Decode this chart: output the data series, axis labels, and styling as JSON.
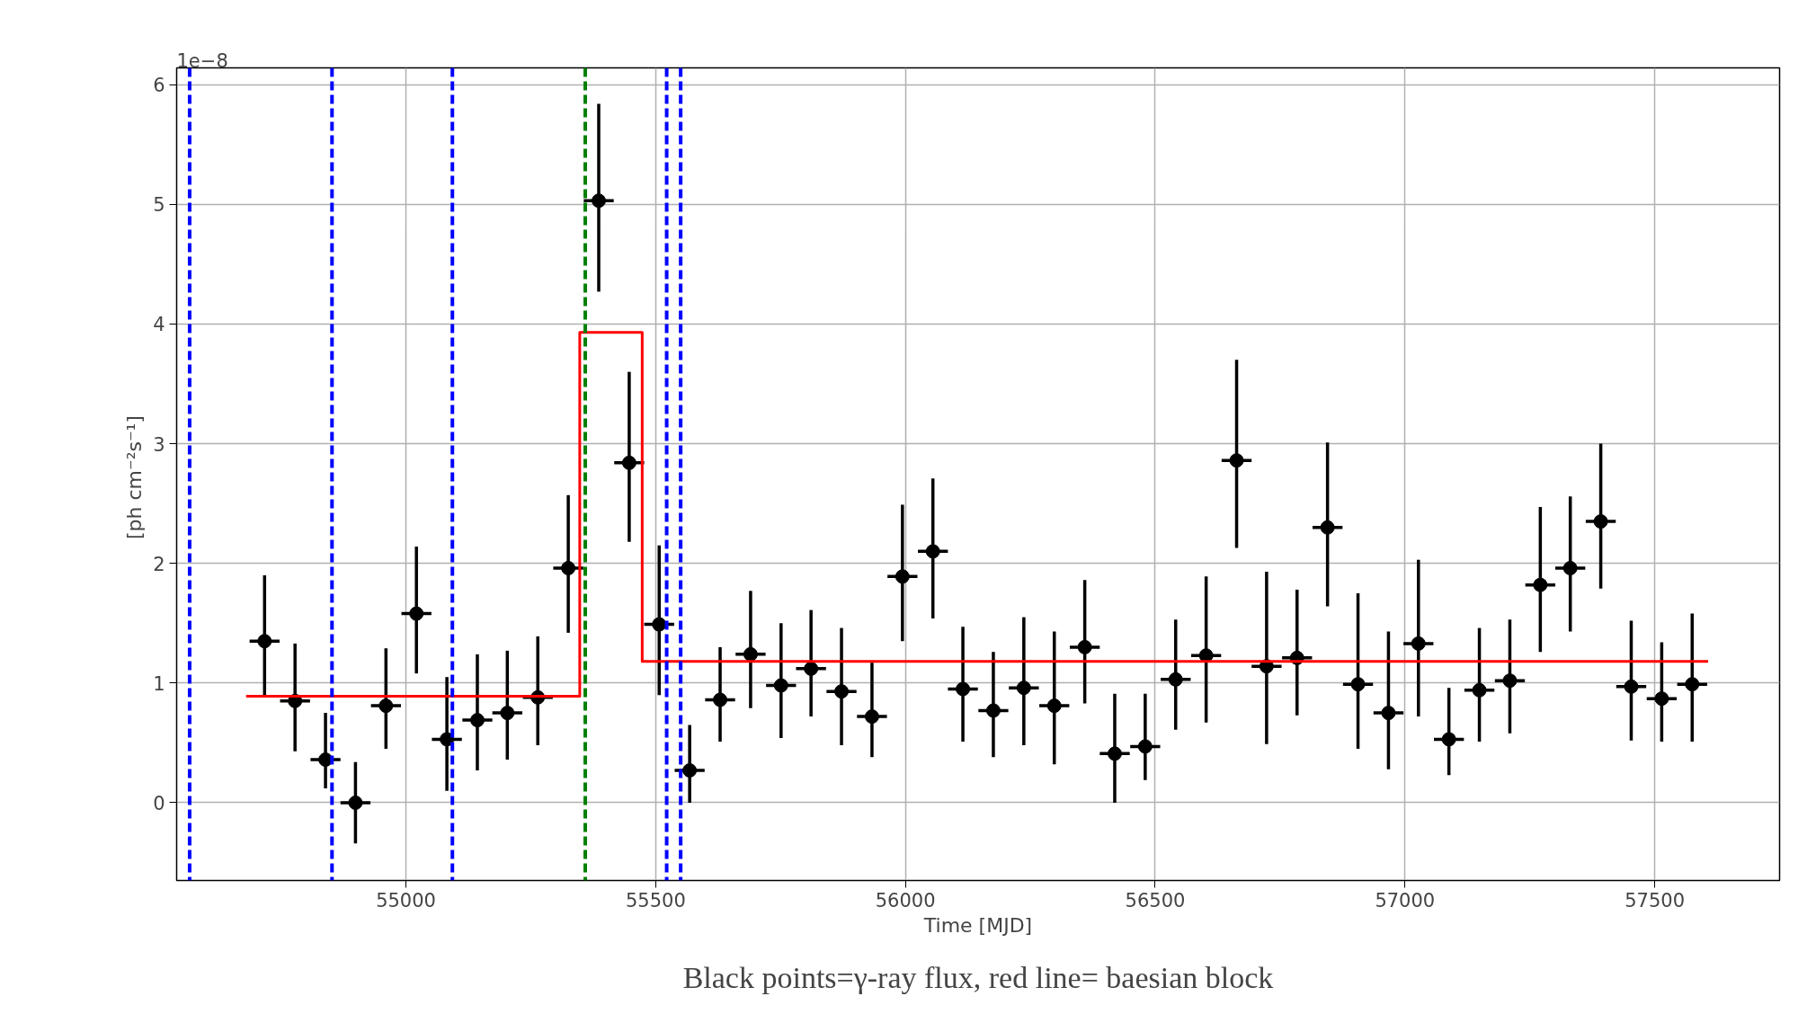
{
  "chart_data": {
    "type": "scatter",
    "xlabel": "Time [MJD]",
    "ylabel": "[ph  cm⁻²s⁻¹]",
    "annotations": [
      "1e−8",
      "Black points=γ-ray flux, red line= baesian block"
    ],
    "xlim": [
      54541,
      57750
    ],
    "ylim": [
      -0.65,
      6.14
    ],
    "xticks": [
      55000,
      55500,
      56000,
      56500,
      57000,
      57500
    ],
    "yticks": [
      0,
      1,
      2,
      3,
      4,
      5,
      6
    ],
    "grid": true,
    "series": [
      {
        "color": "#000000",
        "marker": "circle",
        "x": [
          54717,
          54778,
          54839,
          54899,
          54960,
          55021,
          55082,
          55143,
          55203,
          55264,
          55325,
          55386,
          55447,
          55507,
          55568,
          55629,
          55690,
          55751,
          55811,
          55872,
          55933,
          55994,
          56055,
          56115,
          56176,
          56237,
          56298,
          56359,
          56419,
          56480,
          56541,
          56602,
          56663,
          56723,
          56784,
          56845,
          56906,
          56967,
          57027,
          57088,
          57149,
          57210,
          57271,
          57331,
          57392,
          57453,
          57514,
          57575
        ],
        "values": [
          1.35,
          0.85,
          0.36,
          0.0,
          0.81,
          1.58,
          0.53,
          0.69,
          0.75,
          0.88,
          1.96,
          5.03,
          2.84,
          1.49,
          0.27,
          0.86,
          1.24,
          0.98,
          1.12,
          0.93,
          0.72,
          1.89,
          2.1,
          0.95,
          0.77,
          0.96,
          0.81,
          1.3,
          0.41,
          0.47,
          1.03,
          1.23,
          2.86,
          1.14,
          1.21,
          2.3,
          0.99,
          0.75,
          1.33,
          0.53,
          0.94,
          1.02,
          1.82,
          1.96,
          2.35,
          0.97,
          0.87,
          0.99
        ],
        "errors": [
          [
            0.9,
            1.9
          ],
          [
            0.43,
            1.33
          ],
          [
            0.12,
            0.75
          ],
          [
            -0.34,
            0.34
          ],
          [
            0.45,
            1.29
          ],
          [
            1.08,
            2.14
          ],
          [
            0.1,
            1.05
          ],
          [
            0.27,
            1.24
          ],
          [
            0.36,
            1.27
          ],
          [
            0.48,
            1.39
          ],
          [
            1.42,
            2.57
          ],
          [
            4.27,
            5.84
          ],
          [
            2.18,
            3.6
          ],
          [
            0.9,
            2.15
          ],
          [
            0.0,
            0.65
          ],
          [
            0.51,
            1.3
          ],
          [
            0.79,
            1.77
          ],
          [
            0.54,
            1.5
          ],
          [
            0.72,
            1.61
          ],
          [
            0.48,
            1.46
          ],
          [
            0.38,
            1.17
          ],
          [
            1.35,
            2.49
          ],
          [
            1.54,
            2.71
          ],
          [
            0.51,
            1.47
          ],
          [
            0.38,
            1.26
          ],
          [
            0.48,
            1.55
          ],
          [
            0.32,
            1.43
          ],
          [
            0.83,
            1.86
          ],
          [
            0.0,
            0.91
          ],
          [
            0.19,
            0.91
          ],
          [
            0.61,
            1.53
          ],
          [
            0.67,
            1.89
          ],
          [
            2.13,
            3.7
          ],
          [
            0.49,
            1.93
          ],
          [
            0.73,
            1.78
          ],
          [
            1.64,
            3.01
          ],
          [
            0.45,
            1.75
          ],
          [
            0.28,
            1.43
          ],
          [
            0.72,
            2.03
          ],
          [
            0.23,
            0.96
          ],
          [
            0.51,
            1.46
          ],
          [
            0.58,
            1.53
          ],
          [
            1.26,
            2.47
          ],
          [
            1.43,
            2.56
          ],
          [
            1.79,
            3.0
          ],
          [
            0.52,
            1.52
          ],
          [
            0.51,
            1.34
          ],
          [
            0.51,
            1.58
          ]
        ],
        "xerrors": [
          30,
          30,
          30,
          30,
          30,
          30,
          30,
          30,
          30,
          30,
          30,
          30,
          30,
          30,
          30,
          30,
          30,
          30,
          30,
          30,
          30,
          30,
          30,
          30,
          30,
          30,
          30,
          30,
          30,
          30,
          30,
          30,
          30,
          30,
          30,
          30,
          30,
          30,
          30,
          30,
          30,
          30,
          30,
          30,
          30,
          30,
          30,
          30
        ]
      },
      {
        "type": "step",
        "color": "#ff0000",
        "marker": "none",
        "x": [
          54680,
          55348,
          55473,
          57607
        ],
        "values": [
          0.89,
          3.93,
          1.18,
          1.18
        ]
      }
    ],
    "ref_lines": [
      {
        "axis": "x",
        "value": 54567,
        "color": "#0000ff",
        "line_style": "dashed"
      },
      {
        "axis": "x",
        "value": 54852,
        "color": "#0000ff",
        "line_style": "dashed"
      },
      {
        "axis": "x",
        "value": 55093,
        "color": "#0000ff",
        "line_style": "dashed"
      },
      {
        "axis": "x",
        "value": 55359,
        "color": "#008000",
        "line_style": "dashed"
      },
      {
        "axis": "x",
        "value": 55522,
        "color": "#0000ff",
        "line_style": "dashed"
      },
      {
        "axis": "x",
        "value": 55550,
        "color": "#0000ff",
        "line_style": "dashed"
      }
    ]
  }
}
